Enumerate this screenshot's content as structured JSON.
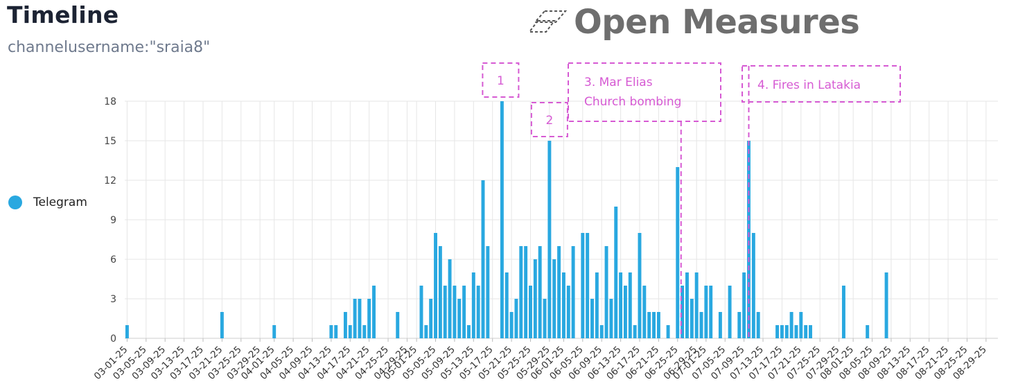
{
  "header": {
    "title": "Timeline",
    "subtitle": "channelusername:\"sraia8\"",
    "brand": "Open Measures"
  },
  "colors": {
    "bar": "#29a8e0",
    "annotation": "#d65ad3",
    "grid": "#e6e6e6",
    "title": "#1c2333",
    "subtitle": "#6f7a8d",
    "brand": "#6e6e6e"
  },
  "legend": {
    "placement": "left",
    "items": [
      {
        "label": "Telegram",
        "color": "#29a8e0"
      }
    ]
  },
  "chart_data": {
    "type": "bar",
    "title": "Timeline",
    "xlabel": "",
    "ylabel": "",
    "ylim": [
      0,
      18
    ],
    "yticks": [
      0,
      3,
      6,
      9,
      12,
      15,
      18
    ],
    "grid": true,
    "x_start": "2025-03-01",
    "x_end": "2025-08-31",
    "tick_labels": [
      "03-01-25",
      "03-05-25",
      "03-09-25",
      "03-13-25",
      "03-17-25",
      "03-21-25",
      "03-25-25",
      "03-29-25",
      "04-01-25",
      "04-05-25",
      "04-09-25",
      "04-13-25",
      "04-17-25",
      "04-21-25",
      "04-25-25",
      "04-29-25",
      "05-01-25",
      "05-05-25",
      "05-09-25",
      "05-13-25",
      "05-17-25",
      "05-21-25",
      "05-25-25",
      "05-29-25",
      "06-01-25",
      "06-05-25",
      "06-09-25",
      "06-13-25",
      "06-17-25",
      "06-21-25",
      "06-25-25",
      "06-29-25",
      "07-01-25",
      "07-05-25",
      "07-09-25",
      "07-13-25",
      "07-17-25",
      "07-21-25",
      "07-25-25",
      "07-29-25",
      "08-01-25",
      "08-05-25",
      "08-09-25",
      "08-13-25",
      "08-17-25",
      "08-21-25",
      "08-25-25",
      "08-29-25"
    ],
    "series": [
      {
        "name": "Telegram",
        "points": [
          [
            "03-01-25",
            1
          ],
          [
            "03-21-25",
            2
          ],
          [
            "04-01-25",
            1
          ],
          [
            "04-13-25",
            1
          ],
          [
            "04-14-25",
            1
          ],
          [
            "04-16-25",
            2
          ],
          [
            "04-17-25",
            1
          ],
          [
            "04-18-25",
            3
          ],
          [
            "04-19-25",
            3
          ],
          [
            "04-20-25",
            1
          ],
          [
            "04-21-25",
            3
          ],
          [
            "04-22-25",
            4
          ],
          [
            "04-27-25",
            2
          ],
          [
            "05-02-25",
            4
          ],
          [
            "05-03-25",
            1
          ],
          [
            "05-04-25",
            3
          ],
          [
            "05-05-25",
            8
          ],
          [
            "05-06-25",
            7
          ],
          [
            "05-07-25",
            4
          ],
          [
            "05-08-25",
            6
          ],
          [
            "05-09-25",
            4
          ],
          [
            "05-10-25",
            3
          ],
          [
            "05-11-25",
            4
          ],
          [
            "05-12-25",
            1
          ],
          [
            "05-13-25",
            5
          ],
          [
            "05-14-25",
            4
          ],
          [
            "05-15-25",
            12
          ],
          [
            "05-16-25",
            7
          ],
          [
            "05-19-25",
            18
          ],
          [
            "05-20-25",
            5
          ],
          [
            "05-21-25",
            2
          ],
          [
            "05-22-25",
            3
          ],
          [
            "05-23-25",
            7
          ],
          [
            "05-24-25",
            7
          ],
          [
            "05-25-25",
            4
          ],
          [
            "05-26-25",
            6
          ],
          [
            "05-27-25",
            7
          ],
          [
            "05-28-25",
            3
          ],
          [
            "05-29-25",
            15
          ],
          [
            "05-30-25",
            6
          ],
          [
            "05-31-25",
            7
          ],
          [
            "06-01-25",
            5
          ],
          [
            "06-02-25",
            4
          ],
          [
            "06-03-25",
            7
          ],
          [
            "06-05-25",
            8
          ],
          [
            "06-06-25",
            8
          ],
          [
            "06-07-25",
            3
          ],
          [
            "06-08-25",
            5
          ],
          [
            "06-09-25",
            1
          ],
          [
            "06-10-25",
            7
          ],
          [
            "06-11-25",
            3
          ],
          [
            "06-12-25",
            10
          ],
          [
            "06-13-25",
            5
          ],
          [
            "06-14-25",
            4
          ],
          [
            "06-15-25",
            5
          ],
          [
            "06-16-25",
            1
          ],
          [
            "06-17-25",
            8
          ],
          [
            "06-18-25",
            4
          ],
          [
            "06-19-25",
            2
          ],
          [
            "06-20-25",
            2
          ],
          [
            "06-21-25",
            2
          ],
          [
            "06-23-25",
            1
          ],
          [
            "06-25-25",
            13
          ],
          [
            "06-26-25",
            4
          ],
          [
            "06-27-25",
            5
          ],
          [
            "06-28-25",
            3
          ],
          [
            "06-29-25",
            5
          ],
          [
            "06-30-25",
            2
          ],
          [
            "07-01-25",
            4
          ],
          [
            "07-02-25",
            4
          ],
          [
            "07-04-25",
            2
          ],
          [
            "07-06-25",
            4
          ],
          [
            "07-08-25",
            2
          ],
          [
            "07-09-25",
            5
          ],
          [
            "07-10-25",
            15
          ],
          [
            "07-11-25",
            8
          ],
          [
            "07-12-25",
            2
          ],
          [
            "07-16-25",
            1
          ],
          [
            "07-17-25",
            1
          ],
          [
            "07-18-25",
            1
          ],
          [
            "07-19-25",
            2
          ],
          [
            "07-20-25",
            1
          ],
          [
            "07-21-25",
            2
          ],
          [
            "07-22-25",
            1
          ],
          [
            "07-23-25",
            1
          ],
          [
            "07-30-25",
            4
          ],
          [
            "08-04-25",
            1
          ],
          [
            "08-08-25",
            5
          ]
        ]
      }
    ],
    "annotations": [
      {
        "label": "1",
        "date": "05-19-25"
      },
      {
        "label": "2",
        "date": "05-29-25"
      },
      {
        "label": "3. Mar Elias Church bombing",
        "lines": [
          "3. Mar Elias",
          "Church bombing"
        ],
        "date": "06-25-25"
      },
      {
        "label": "4. Fires in Latakia",
        "date": "07-10-25"
      }
    ]
  }
}
